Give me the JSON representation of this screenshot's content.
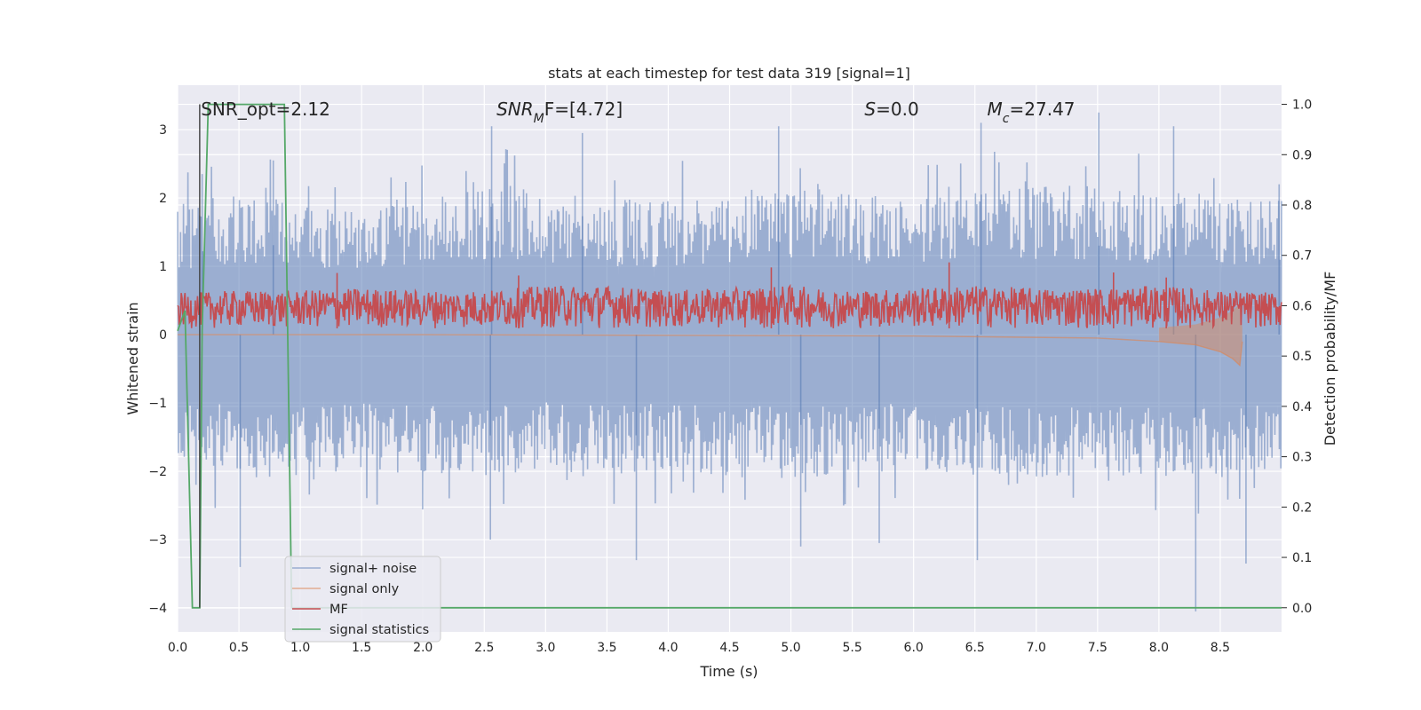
{
  "chart_data": {
    "type": "line",
    "title": "stats at each timestep for test data 319 [signal=1]",
    "xlabel": "Time (s)",
    "ylabel": "Whitened strain",
    "ylabel_right": "Detection probability/MF",
    "xlim": [
      0.0,
      9.0
    ],
    "ylim": [
      -4.35,
      3.65
    ],
    "ylim_right": [
      -0.048,
      1.038
    ],
    "grid": true,
    "legend_position": "lower-left",
    "x_ticks": [
      "0.0",
      "0.5",
      "1.0",
      "1.5",
      "2.0",
      "2.5",
      "3.0",
      "3.5",
      "4.0",
      "4.5",
      "5.0",
      "5.5",
      "6.0",
      "6.5",
      "7.0",
      "7.5",
      "8.0",
      "8.5"
    ],
    "y_ticks": [
      "3",
      "2",
      "1",
      "0",
      "−1",
      "−2",
      "−3",
      "−4"
    ],
    "y_ticks_right": [
      "1.0",
      "0.9",
      "0.8",
      "0.7",
      "0.6",
      "0.5",
      "0.4",
      "0.3",
      "0.2",
      "0.1",
      "0.0"
    ],
    "annotations": [
      {
        "text": "SNR_opt=2.12",
        "x": 0.19,
        "y": 3.3,
        "italic": false
      },
      {
        "text": "SNR",
        "sub": "M",
        "suffix": "F=[4.72]",
        "x": 2.6,
        "y": 3.3,
        "italic": true
      },
      {
        "text": "S",
        "suffix": "=0.0",
        "x": 5.6,
        "y": 3.3,
        "italic": true
      },
      {
        "text": "M",
        "sub": "c",
        "suffix": "=27.47",
        "x": 6.6,
        "y": 3.3,
        "italic": true
      }
    ],
    "series": [
      {
        "name": "signal+ noise",
        "color": "#4c72b0",
        "axis": "left",
        "kind": "noise",
        "envelope_positive": [
          [
            0.0,
            1.7
          ],
          [
            0.5,
            1.9
          ],
          [
            1.0,
            1.8
          ],
          [
            1.5,
            1.7
          ],
          [
            2.0,
            1.8
          ],
          [
            2.5,
            2.0
          ],
          [
            3.0,
            1.9
          ],
          [
            3.5,
            1.8
          ],
          [
            4.0,
            1.8
          ],
          [
            4.5,
            1.9
          ],
          [
            5.0,
            2.0
          ],
          [
            5.5,
            1.9
          ],
          [
            6.0,
            1.8
          ],
          [
            6.5,
            1.9
          ],
          [
            7.0,
            2.0
          ],
          [
            7.5,
            2.0
          ],
          [
            8.0,
            1.9
          ],
          [
            8.5,
            1.8
          ],
          [
            9.0,
            1.8
          ]
        ],
        "envelope_negative": [
          [
            0.0,
            -1.7
          ],
          [
            0.5,
            -1.9
          ],
          [
            1.0,
            -1.9
          ],
          [
            1.5,
            -1.8
          ],
          [
            2.0,
            -1.9
          ],
          [
            2.5,
            -1.9
          ],
          [
            3.0,
            -1.8
          ],
          [
            3.5,
            -1.9
          ],
          [
            4.0,
            -1.8
          ],
          [
            4.5,
            -1.9
          ],
          [
            5.0,
            -1.9
          ],
          [
            5.5,
            -1.9
          ],
          [
            6.0,
            -1.8
          ],
          [
            6.5,
            -1.9
          ],
          [
            7.0,
            -1.9
          ],
          [
            7.5,
            -1.9
          ],
          [
            8.0,
            -1.9
          ],
          [
            8.5,
            -1.9
          ],
          [
            9.0,
            -1.8
          ]
        ],
        "peaks": [
          [
            0.2,
            2.35
          ],
          [
            0.78,
            2.55
          ],
          [
            2.56,
            3.05
          ],
          [
            3.3,
            2.95
          ],
          [
            4.9,
            3.05
          ],
          [
            6.55,
            3.1
          ],
          [
            7.51,
            3.25
          ],
          [
            8.12,
            3.05
          ],
          [
            8.98,
            2.2
          ],
          [
            0.51,
            -3.4
          ],
          [
            2.55,
            -3.0
          ],
          [
            3.74,
            -3.3
          ],
          [
            5.08,
            -3.1
          ],
          [
            5.72,
            -3.05
          ],
          [
            6.52,
            -3.3
          ],
          [
            8.3,
            -4.05
          ],
          [
            8.71,
            -3.35
          ]
        ]
      },
      {
        "name": "signal only",
        "color": "#dd8452",
        "axis": "left",
        "kind": "signal",
        "points": [
          [
            0.0,
            0.0
          ],
          [
            2.0,
            0.0
          ],
          [
            4.0,
            -0.01
          ],
          [
            6.0,
            -0.02
          ],
          [
            7.5,
            -0.05
          ],
          [
            8.0,
            -0.1
          ],
          [
            8.3,
            -0.15
          ],
          [
            8.5,
            -0.25
          ],
          [
            8.6,
            -0.35
          ],
          [
            8.66,
            -0.45
          ],
          [
            8.68,
            -0.1
          ]
        ]
      },
      {
        "name": "MF",
        "color": "#c44e52",
        "axis": "right",
        "kind": "noise",
        "baseline": 0.555,
        "envelope_top": [
          [
            0.0,
            0.625
          ],
          [
            0.5,
            0.63
          ],
          [
            1.0,
            0.63
          ],
          [
            1.5,
            0.635
          ],
          [
            2.0,
            0.63
          ],
          [
            2.5,
            0.63
          ],
          [
            3.0,
            0.64
          ],
          [
            3.5,
            0.64
          ],
          [
            4.0,
            0.63
          ],
          [
            4.5,
            0.635
          ],
          [
            5.0,
            0.64
          ],
          [
            5.5,
            0.63
          ],
          [
            6.0,
            0.635
          ],
          [
            6.5,
            0.64
          ],
          [
            7.0,
            0.635
          ],
          [
            7.5,
            0.635
          ],
          [
            8.0,
            0.64
          ],
          [
            8.5,
            0.63
          ],
          [
            9.0,
            0.625
          ]
        ],
        "peaks": [
          [
            1.3,
            0.665
          ],
          [
            2.78,
            0.66
          ],
          [
            4.84,
            0.676
          ],
          [
            6.29,
            0.686
          ],
          [
            7.63,
            0.666
          ],
          [
            8.06,
            0.656
          ]
        ]
      },
      {
        "name": "signal statistics",
        "color": "#55a868",
        "axis": "right",
        "kind": "line",
        "points": [
          [
            0.0,
            0.55
          ],
          [
            0.06,
            0.59
          ],
          [
            0.12,
            0.0
          ],
          [
            0.18,
            0.0
          ],
          [
            0.2,
            0.55
          ],
          [
            0.25,
            1.0
          ],
          [
            0.87,
            1.0
          ],
          [
            0.93,
            0.0
          ],
          [
            9.0,
            0.0
          ]
        ]
      },
      {
        "name": "",
        "color": "#404040",
        "axis": "right",
        "kind": "vline",
        "x": 0.18,
        "y_from": 0.0,
        "y_to": 1.0
      }
    ]
  }
}
